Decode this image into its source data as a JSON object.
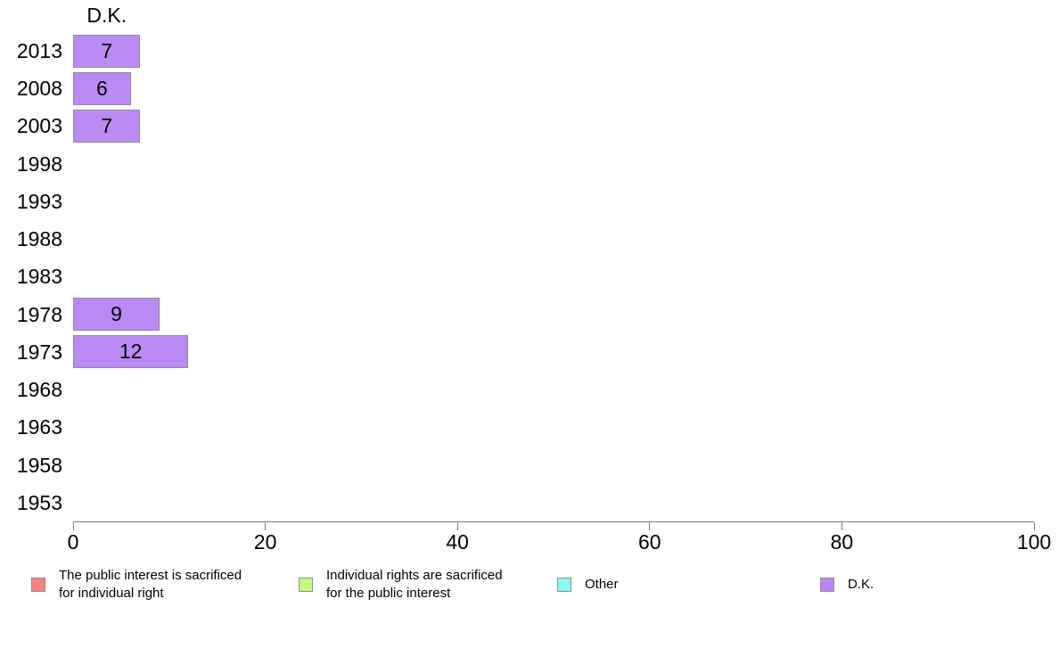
{
  "chart_data": {
    "type": "bar",
    "orientation": "horizontal",
    "title": "D.K.",
    "categories": [
      "2013",
      "2008",
      "2003",
      "1998",
      "1993",
      "1988",
      "1983",
      "1978",
      "1973",
      "1968",
      "1963",
      "1958",
      "1953"
    ],
    "values": [
      7,
      6,
      7,
      null,
      null,
      null,
      null,
      9,
      12,
      null,
      null,
      null,
      null
    ],
    "xlabel": "",
    "ylabel": "",
    "xlim": [
      0,
      100
    ],
    "x_ticks": [
      0,
      20,
      40,
      60,
      80,
      100
    ],
    "grid": false,
    "bar_color": "#BA8BF5",
    "bar_border_color": "#8F8A96",
    "value_label_color": "#000000",
    "axis_color": "#7D7D7D",
    "legend_position": "bottom",
    "legend": [
      {
        "lines": [
          "The public interest is sacrificed",
          "for individual right"
        ],
        "color": "#F9837E"
      },
      {
        "lines": [
          "Individual rights are sacrificed",
          "for the public interest"
        ],
        "color": "#C8F97E"
      },
      {
        "lines": [
          "Other"
        ],
        "color": "#8BFBF0"
      },
      {
        "lines": [
          "D.K."
        ],
        "color": "#BB86F2"
      }
    ]
  }
}
